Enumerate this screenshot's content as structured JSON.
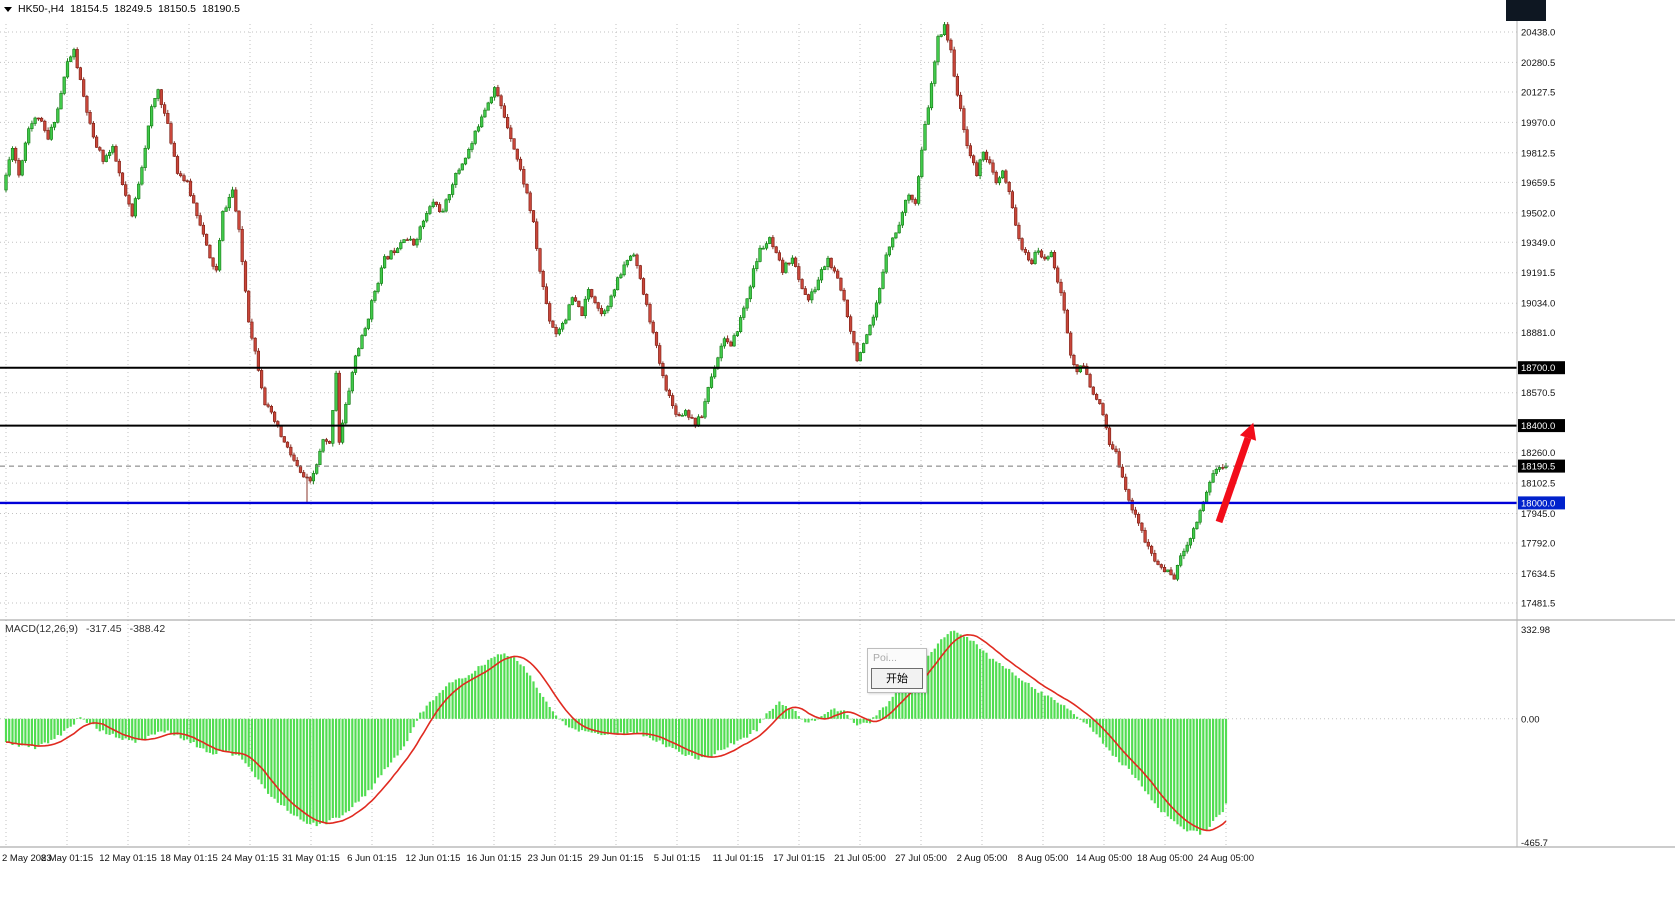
{
  "window": {
    "symbol_info": {
      "pair_period": "HK50-,H4",
      "open": "18154.5",
      "high": "18249.5",
      "low": "18150.5",
      "close": "18190.5"
    }
  },
  "colors": {
    "bull_fill": "#41c94b",
    "bull_stroke": "#117a11",
    "bear_fill": "#c8463a",
    "bear_stroke": "#7c1f14",
    "macd_hist": "#52dd52",
    "macd_signal": "#e02a20",
    "level_black": "#000000",
    "level_blue": "#0000d8",
    "grid": "#c2c2c2",
    "badge_bg": "#000000",
    "badge_blue": "#0022cc",
    "arrow": "#f20d1a",
    "axis_text": "#111111",
    "separator": "#9a9a9a"
  },
  "price_axis": {
    "ticks": [
      20438.0,
      20280.5,
      20127.5,
      19970.0,
      19812.5,
      19659.5,
      19502.0,
      19349.0,
      19191.5,
      19034.0,
      18881.0,
      18570.5,
      18260.0,
      18102.5,
      17945.0,
      17792.0,
      17634.5,
      17481.5
    ],
    "badges": [
      {
        "value": 18700.0,
        "label": "18700.0",
        "style": "level"
      },
      {
        "value": 18400.0,
        "label": "18400.0",
        "style": "level"
      },
      {
        "value": 18190.5,
        "label": "18190.5",
        "style": "current"
      },
      {
        "value": 18000.0,
        "label": "18000.0",
        "style": "blue"
      }
    ]
  },
  "x_axis": {
    "labels": [
      "2 May 2023",
      "8 May 01:15",
      "12 May 01:15",
      "18 May 01:15",
      "24 May 01:15",
      "31 May 01:15",
      "6 Jun 01:15",
      "12 Jun 01:15",
      "16 Jun 01:15",
      "23 Jun 01:15",
      "29 Jun 01:15",
      "5 Jul 01:15",
      "11 Jul 01:15",
      "17 Jul 01:15",
      "21 Jul 05:00",
      "27 Jul 05:00",
      "2 Aug 05:00",
      "8 Aug 05:00",
      "14 Aug 05:00",
      "18 Aug 05:00",
      "24 Aug 05:00"
    ]
  },
  "macd": {
    "name": "MACD(12,26,9)",
    "main_value": "-317.45",
    "signal_value": "-388.42",
    "axis": {
      "max": "332.98",
      "zero": "0.00",
      "min": "-465.7"
    }
  },
  "popup": {
    "item": "Poi...",
    "button": "开始"
  },
  "chart_data": {
    "type": "candlestick",
    "symbol": "HK50-",
    "timeframe": "H4",
    "title": "HK50- H4 candlestick chart with MACD(12,26,9)",
    "ohlc_current": {
      "open": 18154.5,
      "high": 18249.5,
      "low": 18150.5,
      "close": 18190.5
    },
    "price_axis_range": {
      "top": 20438.0,
      "bottom": 17481.5
    },
    "horizontal_levels": [
      {
        "price": 18700.0,
        "color": "black"
      },
      {
        "price": 18400.0,
        "color": "black"
      },
      {
        "price": 18000.0,
        "color": "blue"
      }
    ],
    "current_price": 18190.5,
    "num_candles": 378,
    "price_path_anchors": [
      [
        0,
        19620
      ],
      [
        3,
        19850
      ],
      [
        5,
        19700
      ],
      [
        8,
        19950
      ],
      [
        11,
        20000
      ],
      [
        14,
        19880
      ],
      [
        17,
        20040
      ],
      [
        20,
        20280
      ],
      [
        22,
        20340
      ],
      [
        25,
        20100
      ],
      [
        28,
        19880
      ],
      [
        31,
        19780
      ],
      [
        34,
        19830
      ],
      [
        37,
        19640
      ],
      [
        40,
        19480
      ],
      [
        43,
        19750
      ],
      [
        46,
        20040
      ],
      [
        48,
        20140
      ],
      [
        51,
        19950
      ],
      [
        54,
        19720
      ],
      [
        57,
        19650
      ],
      [
        61,
        19450
      ],
      [
        64,
        19260
      ],
      [
        66,
        19200
      ],
      [
        68,
        19500
      ],
      [
        71,
        19620
      ],
      [
        73,
        19400
      ],
      [
        76,
        18950
      ],
      [
        79,
        18700
      ],
      [
        81,
        18520
      ],
      [
        84,
        18420
      ],
      [
        87,
        18310
      ],
      [
        89,
        18250
      ],
      [
        92,
        18150
      ],
      [
        95,
        18100
      ],
      [
        97,
        18200
      ],
      [
        99,
        18320
      ],
      [
        101,
        18300
      ],
      [
        103,
        18680
      ],
      [
        104,
        18320
      ],
      [
        106,
        18500
      ],
      [
        109,
        18760
      ],
      [
        112,
        18900
      ],
      [
        115,
        19100
      ],
      [
        118,
        19260
      ],
      [
        121,
        19310
      ],
      [
        124,
        19380
      ],
      [
        127,
        19340
      ],
      [
        130,
        19460
      ],
      [
        133,
        19560
      ],
      [
        136,
        19500
      ],
      [
        139,
        19660
      ],
      [
        142,
        19760
      ],
      [
        145,
        19860
      ],
      [
        148,
        20010
      ],
      [
        152,
        20150
      ],
      [
        154,
        20050
      ],
      [
        157,
        19900
      ],
      [
        159,
        19780
      ],
      [
        162,
        19600
      ],
      [
        164,
        19440
      ],
      [
        166,
        19200
      ],
      [
        169,
        18950
      ],
      [
        171,
        18880
      ],
      [
        174,
        18960
      ],
      [
        176,
        19060
      ],
      [
        179,
        18980
      ],
      [
        181,
        19100
      ],
      [
        183,
        19050
      ],
      [
        185,
        18980
      ],
      [
        188,
        19060
      ],
      [
        190,
        19150
      ],
      [
        193,
        19260
      ],
      [
        195,
        19300
      ],
      [
        197,
        19150
      ],
      [
        200,
        18950
      ],
      [
        202,
        18800
      ],
      [
        204,
        18650
      ],
      [
        207,
        18500
      ],
      [
        209,
        18450
      ],
      [
        211,
        18480
      ],
      [
        214,
        18410
      ],
      [
        216,
        18450
      ],
      [
        218,
        18600
      ],
      [
        221,
        18760
      ],
      [
        223,
        18860
      ],
      [
        225,
        18800
      ],
      [
        227,
        18900
      ],
      [
        230,
        19060
      ],
      [
        232,
        19200
      ],
      [
        234,
        19310
      ],
      [
        237,
        19360
      ],
      [
        239,
        19280
      ],
      [
        241,
        19200
      ],
      [
        244,
        19280
      ],
      [
        246,
        19150
      ],
      [
        249,
        19050
      ],
      [
        251,
        19110
      ],
      [
        253,
        19200
      ],
      [
        255,
        19260
      ],
      [
        258,
        19150
      ],
      [
        260,
        19050
      ],
      [
        262,
        18900
      ],
      [
        264,
        18750
      ],
      [
        266,
        18810
      ],
      [
        269,
        18950
      ],
      [
        271,
        19100
      ],
      [
        273,
        19300
      ],
      [
        276,
        19400
      ],
      [
        278,
        19500
      ],
      [
        280,
        19610
      ],
      [
        282,
        19550
      ],
      [
        285,
        19950
      ],
      [
        287,
        20160
      ],
      [
        289,
        20400
      ],
      [
        291,
        20480
      ],
      [
        293,
        20330
      ],
      [
        295,
        20120
      ],
      [
        297,
        19930
      ],
      [
        299,
        19800
      ],
      [
        301,
        19700
      ],
      [
        303,
        19830
      ],
      [
        305,
        19750
      ],
      [
        307,
        19650
      ],
      [
        309,
        19710
      ],
      [
        311,
        19600
      ],
      [
        313,
        19450
      ],
      [
        315,
        19300
      ],
      [
        318,
        19250
      ],
      [
        320,
        19310
      ],
      [
        322,
        19250
      ],
      [
        324,
        19310
      ],
      [
        326,
        19150
      ],
      [
        328,
        19000
      ],
      [
        330,
        18760
      ],
      [
        332,
        18680
      ],
      [
        334,
        18710
      ],
      [
        336,
        18600
      ],
      [
        338,
        18550
      ],
      [
        340,
        18450
      ],
      [
        342,
        18300
      ],
      [
        344,
        18250
      ],
      [
        346,
        18150
      ],
      [
        348,
        18000
      ],
      [
        350,
        17950
      ],
      [
        353,
        17800
      ],
      [
        356,
        17700
      ],
      [
        359,
        17650
      ],
      [
        362,
        17620
      ],
      [
        365,
        17760
      ],
      [
        368,
        17860
      ],
      [
        371,
        18010
      ],
      [
        374,
        18160
      ],
      [
        377,
        18190.5
      ]
    ],
    "indicator": {
      "name": "MACD",
      "params": [
        12,
        26,
        9
      ],
      "main": -317.45,
      "signal": -388.42,
      "scale_max": 332.98,
      "scale_min": -465.7,
      "main_anchors": [
        [
          0,
          -90
        ],
        [
          9,
          -110
        ],
        [
          17,
          -60
        ],
        [
          21,
          -15
        ],
        [
          23,
          10
        ],
        [
          26,
          -20
        ],
        [
          31,
          -55
        ],
        [
          36,
          -75
        ],
        [
          40,
          -90
        ],
        [
          45,
          -60
        ],
        [
          49,
          -45
        ],
        [
          54,
          -70
        ],
        [
          59,
          -100
        ],
        [
          63,
          -130
        ],
        [
          68,
          -120
        ],
        [
          73,
          -150
        ],
        [
          77,
          -220
        ],
        [
          82,
          -290
        ],
        [
          87,
          -340
        ],
        [
          91,
          -380
        ],
        [
          96,
          -400
        ],
        [
          99,
          -390
        ],
        [
          104,
          -360
        ],
        [
          108,
          -320
        ],
        [
          113,
          -260
        ],
        [
          117,
          -190
        ],
        [
          122,
          -120
        ],
        [
          125,
          -60
        ],
        [
          128,
          20
        ],
        [
          133,
          90
        ],
        [
          137,
          130
        ],
        [
          142,
          160
        ],
        [
          147,
          200
        ],
        [
          151,
          235
        ],
        [
          155,
          240
        ],
        [
          158,
          220
        ],
        [
          161,
          180
        ],
        [
          164,
          120
        ],
        [
          167,
          60
        ],
        [
          170,
          10
        ],
        [
          173,
          -20
        ],
        [
          176,
          -40
        ],
        [
          181,
          -50
        ],
        [
          185,
          -60
        ],
        [
          190,
          -55
        ],
        [
          195,
          -50
        ],
        [
          199,
          -70
        ],
        [
          204,
          -100
        ],
        [
          209,
          -130
        ],
        [
          213,
          -150
        ],
        [
          218,
          -140
        ],
        [
          222,
          -110
        ],
        [
          227,
          -80
        ],
        [
          232,
          -40
        ],
        [
          235,
          20
        ],
        [
          239,
          60
        ],
        [
          243,
          40
        ],
        [
          247,
          -20
        ],
        [
          252,
          10
        ],
        [
          256,
          40
        ],
        [
          260,
          20
        ],
        [
          263,
          -30
        ],
        [
          267,
          -10
        ],
        [
          271,
          40
        ],
        [
          275,
          90
        ],
        [
          280,
          150
        ],
        [
          284,
          220
        ],
        [
          289,
          300
        ],
        [
          292,
          330
        ],
        [
          295,
          320
        ],
        [
          300,
          280
        ],
        [
          304,
          230
        ],
        [
          309,
          190
        ],
        [
          314,
          150
        ],
        [
          318,
          110
        ],
        [
          323,
          80
        ],
        [
          328,
          40
        ],
        [
          332,
          0
        ],
        [
          337,
          -60
        ],
        [
          341,
          -120
        ],
        [
          346,
          -180
        ],
        [
          351,
          -250
        ],
        [
          355,
          -320
        ],
        [
          360,
          -380
        ],
        [
          365,
          -420
        ],
        [
          369,
          -430
        ],
        [
          372,
          -400
        ],
        [
          376,
          -350
        ],
        [
          377,
          -317.45
        ]
      ]
    },
    "annotation_arrow": {
      "color": "#f20d1a",
      "from_price": 17950,
      "to_price": 18450
    }
  }
}
